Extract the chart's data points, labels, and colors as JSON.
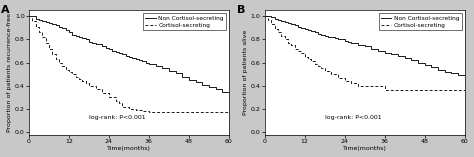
{
  "panel_A": {
    "label": "A",
    "ylabel": "Proportion of patients recurrence-free",
    "xlabel": "Time(months)",
    "logrank_text": "log-rank: P<0.001",
    "xlim": [
      0,
      60
    ],
    "ylim": [
      -0.02,
      1.05
    ],
    "xticks": [
      0,
      12,
      24,
      36,
      48,
      60
    ],
    "yticks": [
      0.0,
      0.2,
      0.4,
      0.6,
      0.8,
      1.0
    ],
    "non_cortisol_x": [
      0,
      2,
      3,
      4,
      5,
      6,
      7,
      8,
      9,
      10,
      11,
      12,
      13,
      14,
      15,
      16,
      17,
      18,
      19,
      20,
      22,
      23,
      24,
      25,
      26,
      27,
      28,
      29,
      30,
      31,
      32,
      33,
      34,
      35,
      36,
      38,
      40,
      42,
      44,
      46,
      48,
      50,
      52,
      54,
      56,
      58,
      60
    ],
    "non_cortisol_y": [
      1.0,
      0.98,
      0.97,
      0.96,
      0.95,
      0.94,
      0.93,
      0.92,
      0.91,
      0.9,
      0.88,
      0.86,
      0.84,
      0.83,
      0.82,
      0.81,
      0.8,
      0.78,
      0.77,
      0.76,
      0.74,
      0.73,
      0.72,
      0.7,
      0.69,
      0.68,
      0.67,
      0.66,
      0.65,
      0.64,
      0.63,
      0.62,
      0.61,
      0.6,
      0.59,
      0.57,
      0.55,
      0.53,
      0.51,
      0.48,
      0.45,
      0.43,
      0.41,
      0.39,
      0.37,
      0.35,
      0.35
    ],
    "cortisol_x": [
      0,
      1,
      2,
      3,
      4,
      5,
      6,
      7,
      8,
      9,
      10,
      11,
      12,
      13,
      14,
      15,
      16,
      17,
      18,
      20,
      22,
      24,
      26,
      27,
      28,
      30,
      32,
      34,
      36,
      38,
      40,
      42,
      44,
      46,
      48,
      50,
      60
    ],
    "cortisol_y": [
      1.0,
      0.96,
      0.91,
      0.86,
      0.82,
      0.77,
      0.72,
      0.67,
      0.63,
      0.6,
      0.57,
      0.54,
      0.52,
      0.5,
      0.48,
      0.46,
      0.44,
      0.42,
      0.4,
      0.37,
      0.34,
      0.3,
      0.27,
      0.25,
      0.22,
      0.2,
      0.19,
      0.18,
      0.17,
      0.17,
      0.17,
      0.17,
      0.17,
      0.17,
      0.17,
      0.17,
      0.17
    ]
  },
  "panel_B": {
    "label": "B",
    "ylabel": "Proportion of patients alive",
    "xlabel": "Time(months)",
    "logrank_text": "log-rank: P<0.001",
    "xlim": [
      0,
      60
    ],
    "ylim": [
      -0.02,
      1.05
    ],
    "xticks": [
      0,
      12,
      24,
      36,
      48,
      60
    ],
    "yticks": [
      0.0,
      0.2,
      0.4,
      0.6,
      0.8,
      1.0
    ],
    "non_cortisol_x": [
      0,
      2,
      3,
      4,
      5,
      6,
      7,
      8,
      9,
      10,
      11,
      12,
      13,
      14,
      15,
      16,
      17,
      18,
      19,
      20,
      21,
      22,
      23,
      24,
      25,
      26,
      28,
      30,
      32,
      34,
      36,
      38,
      40,
      42,
      44,
      46,
      48,
      50,
      52,
      54,
      56,
      58,
      60
    ],
    "non_cortisol_y": [
      1.0,
      0.99,
      0.98,
      0.97,
      0.96,
      0.95,
      0.94,
      0.93,
      0.92,
      0.91,
      0.9,
      0.89,
      0.88,
      0.87,
      0.86,
      0.85,
      0.84,
      0.83,
      0.82,
      0.82,
      0.81,
      0.8,
      0.8,
      0.79,
      0.78,
      0.77,
      0.75,
      0.74,
      0.72,
      0.7,
      0.68,
      0.67,
      0.66,
      0.64,
      0.62,
      0.6,
      0.58,
      0.56,
      0.54,
      0.52,
      0.51,
      0.49,
      0.47
    ],
    "cortisol_x": [
      0,
      1,
      2,
      3,
      4,
      5,
      6,
      7,
      8,
      9,
      10,
      11,
      12,
      13,
      14,
      15,
      16,
      17,
      18,
      20,
      22,
      24,
      26,
      28,
      30,
      32,
      34,
      36,
      38,
      40,
      42,
      60
    ],
    "cortisol_y": [
      1.0,
      0.97,
      0.93,
      0.89,
      0.86,
      0.83,
      0.8,
      0.77,
      0.75,
      0.72,
      0.7,
      0.68,
      0.65,
      0.63,
      0.61,
      0.59,
      0.57,
      0.55,
      0.53,
      0.5,
      0.47,
      0.44,
      0.42,
      0.4,
      0.4,
      0.4,
      0.4,
      0.36,
      0.36,
      0.36,
      0.36,
      0.36
    ]
  },
  "legend_labels": [
    "Non Cortisol-secreting",
    "Cortisol-secreting"
  ],
  "non_cortisol_color": "#1a1a1a",
  "cortisol_color": "#1a1a1a",
  "background_color": "#c8c8c8",
  "plot_bg_color": "#ffffff",
  "fontsize_label": 4.5,
  "fontsize_tick": 4.5,
  "fontsize_legend": 4.2,
  "fontsize_logrank": 4.5,
  "fontsize_panel_label": 8
}
